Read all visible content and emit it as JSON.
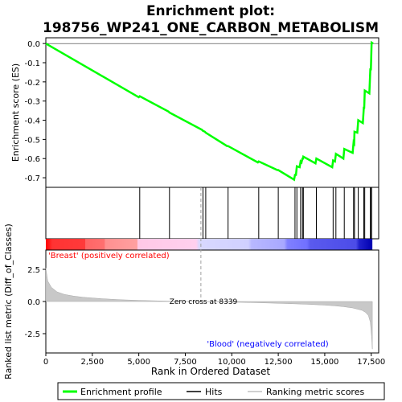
{
  "chart_data": {
    "type": "line",
    "title_line1": "Enrichment plot:",
    "title_line2": "198756_WP241_ONE_CARBON_METABOLISM",
    "xlabel": "Rank in Ordered Dataset",
    "ylabel_top": "Enrichment score (ES)",
    "ylabel_bottom": "Ranked list metric (Diff_of_Classes)",
    "xlim": [
      0,
      17900
    ],
    "es_ylim": [
      -0.75,
      0.03
    ],
    "metric_ylim": [
      -4.0,
      4.0
    ],
    "x_ticks": [
      0,
      2500,
      5000,
      7500,
      10000,
      12500,
      15000,
      17500
    ],
    "x_tick_labels": [
      "0",
      "2,500",
      "5,000",
      "7,500",
      "10,000",
      "12,500",
      "15,000",
      "17,500"
    ],
    "es_ticks": [
      0.0,
      -0.1,
      -0.2,
      -0.3,
      -0.4,
      -0.5,
      -0.6,
      -0.7
    ],
    "es_tick_labels": [
      "0.0",
      "-0.1",
      "-0.2",
      "-0.3",
      "-0.4",
      "-0.5",
      "-0.6",
      "-0.7"
    ],
    "metric_ticks": [
      2.5,
      0.0,
      -2.5
    ],
    "metric_tick_labels": [
      "2.5",
      "0.0",
      "-2.5"
    ],
    "hits": [
      5050,
      6650,
      8450,
      8600,
      9800,
      11450,
      12500,
      13400,
      13500,
      13700,
      13800,
      13850,
      14550,
      15450,
      15600,
      16050,
      16550,
      16600,
      16800,
      17100,
      17150,
      17450,
      17500,
      17520
    ],
    "es_curve": {
      "x": [
        0,
        5000,
        5050,
        6600,
        6650,
        8400,
        8450,
        8550,
        8600,
        9750,
        9800,
        11400,
        11450,
        12450,
        12500,
        13350,
        13400,
        13450,
        13500,
        13650,
        13700,
        13750,
        13800,
        13830,
        13850,
        14500,
        14550,
        15400,
        15450,
        15550,
        15600,
        16000,
        16050,
        16500,
        16550,
        16580,
        16600,
        16750,
        16800,
        17050,
        17100,
        17120,
        17150,
        17400,
        17450,
        17480,
        17500,
        17520,
        17600
      ],
      "y": [
        0.0,
        -0.28,
        -0.275,
        -0.355,
        -0.36,
        -0.45,
        -0.455,
        -0.46,
        -0.465,
        -0.535,
        -0.535,
        -0.62,
        -0.615,
        -0.66,
        -0.66,
        -0.71,
        -0.685,
        -0.685,
        -0.64,
        -0.645,
        -0.615,
        -0.62,
        -0.6,
        -0.6,
        -0.59,
        -0.625,
        -0.6,
        -0.645,
        -0.61,
        -0.615,
        -0.575,
        -0.6,
        -0.55,
        -0.57,
        -0.515,
        -0.52,
        -0.46,
        -0.465,
        -0.4,
        -0.415,
        -0.335,
        -0.335,
        -0.245,
        -0.26,
        -0.135,
        -0.135,
        -0.075,
        0.005,
        0.0
      ]
    },
    "metric_curve": {
      "x": [
        0,
        100,
        300,
        600,
        1000,
        1500,
        2000,
        3000,
        4000,
        5000,
        6000,
        7000,
        8339,
        9000,
        10000,
        11000,
        12000,
        13000,
        14000,
        15000,
        15500,
        16000,
        16500,
        17000,
        17200,
        17350,
        17450,
        17520,
        17560
      ],
      "y": [
        2.6,
        1.6,
        1.1,
        0.75,
        0.55,
        0.42,
        0.33,
        0.22,
        0.14,
        0.09,
        0.05,
        0.02,
        0.0,
        -0.02,
        -0.05,
        -0.08,
        -0.12,
        -0.16,
        -0.21,
        -0.28,
        -0.33,
        -0.4,
        -0.5,
        -0.68,
        -0.85,
        -1.1,
        -1.6,
        -2.7,
        -3.7
      ]
    },
    "zero_cross_label": "Zero cross at 8339",
    "zero_cross_x": 8339,
    "positive_label": "'Breast' (positively correlated)",
    "negative_label": "'Blood' (negatively correlated)",
    "legend": {
      "enrichment": "Enrichment profile",
      "hits": "Hits",
      "ranking": "Ranking metric scores"
    },
    "colors": {
      "es_line": "#00ff00",
      "hit": "#000000",
      "metric_fill": "#c8c8c8",
      "positive_text": "#ff0000",
      "negative_text": "#0000ff"
    }
  }
}
